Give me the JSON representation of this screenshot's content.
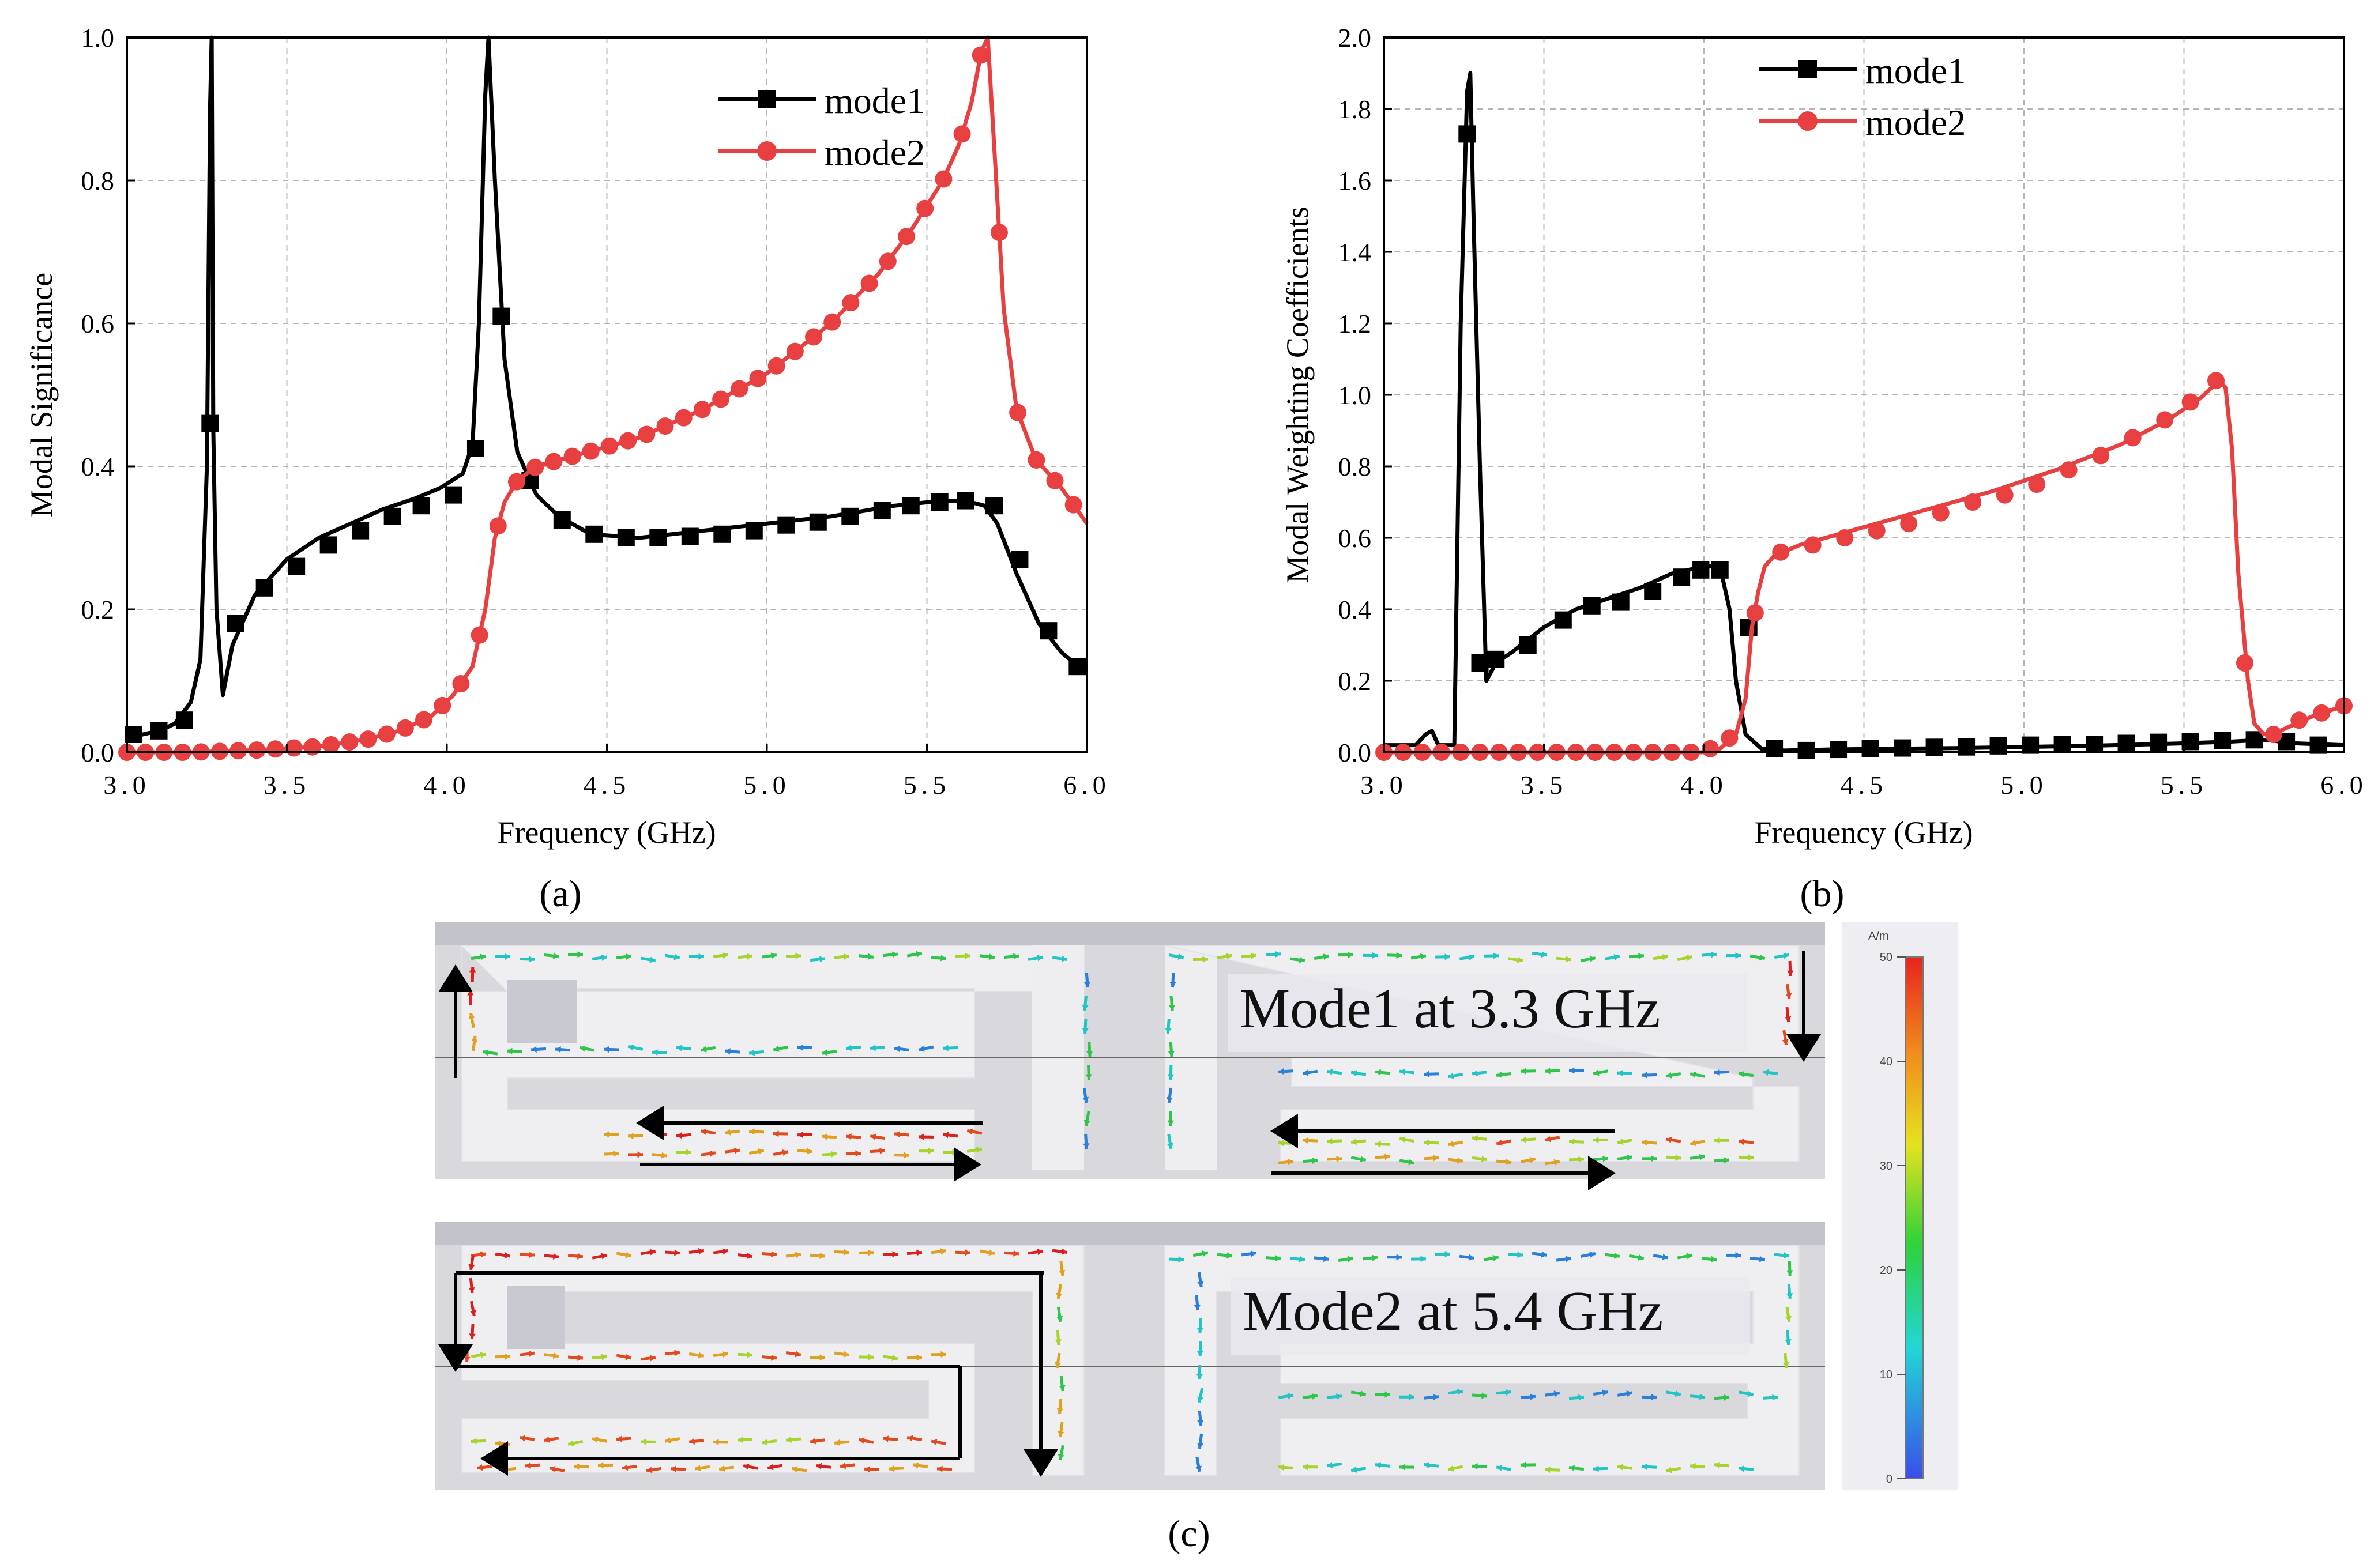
{
  "chart_data": [
    {
      "panel": "(a)",
      "type": "line",
      "title": "",
      "xlabel": "Frequency (GHz)",
      "ylabel": "Modal Significance",
      "xlim": [
        3.0,
        6.0
      ],
      "ylim": [
        0.0,
        1.0
      ],
      "xticks": [
        "3.0",
        "3.5",
        "4.0",
        "4.5",
        "5.0",
        "5.5",
        "6.0"
      ],
      "yticks": [
        "0.0",
        "0.2",
        "0.4",
        "0.6",
        "0.8",
        "1.0"
      ],
      "grid": true,
      "legend_position": "top-right",
      "series": [
        {
          "name": "mode1",
          "color": "#000000",
          "marker": "square",
          "x": [
            3.0,
            3.05,
            3.1,
            3.15,
            3.2,
            3.23,
            3.25,
            3.26,
            3.265,
            3.27,
            3.28,
            3.3,
            3.33,
            3.4,
            3.5,
            3.6,
            3.7,
            3.8,
            3.9,
            3.98,
            4.05,
            4.08,
            4.1,
            4.12,
            4.13,
            4.15,
            4.18,
            4.22,
            4.28,
            4.35,
            4.45,
            4.6,
            4.8,
            5.0,
            5.2,
            5.4,
            5.55,
            5.62,
            5.68,
            5.72,
            5.78,
            5.85,
            5.92,
            6.0
          ],
          "y": [
            0.02,
            0.025,
            0.03,
            0.04,
            0.07,
            0.13,
            0.4,
            0.9,
            1.0,
            0.45,
            0.2,
            0.08,
            0.15,
            0.22,
            0.27,
            0.3,
            0.32,
            0.34,
            0.355,
            0.37,
            0.39,
            0.43,
            0.6,
            0.92,
            1.0,
            0.8,
            0.55,
            0.42,
            0.36,
            0.33,
            0.305,
            0.3,
            0.31,
            0.32,
            0.33,
            0.345,
            0.352,
            0.352,
            0.345,
            0.32,
            0.25,
            0.18,
            0.14,
            0.11
          ],
          "marker_x": [
            3.02,
            3.1,
            3.18,
            3.26,
            3.34,
            3.43,
            3.53,
            3.63,
            3.73,
            3.83,
            3.92,
            4.02,
            4.09,
            4.17,
            4.26,
            4.36,
            4.46,
            4.56,
            4.66,
            4.76,
            4.86,
            4.96,
            5.06,
            5.16,
            5.26,
            5.36,
            5.45,
            5.54,
            5.62,
            5.71,
            5.79,
            5.88,
            5.97
          ],
          "marker_y": [
            0.025,
            0.03,
            0.045,
            0.46,
            0.18,
            0.23,
            0.26,
            0.29,
            0.31,
            0.33,
            0.345,
            0.36,
            0.425,
            0.61,
            0.38,
            0.325,
            0.305,
            0.3,
            0.3,
            0.302,
            0.305,
            0.31,
            0.318,
            0.322,
            0.33,
            0.338,
            0.345,
            0.35,
            0.352,
            0.345,
            0.27,
            0.17,
            0.12
          ]
        },
        {
          "name": "mode2",
          "color": "#e84040",
          "marker": "circle",
          "x": [
            3.0,
            3.2,
            3.4,
            3.6,
            3.75,
            3.85,
            3.95,
            4.02,
            4.08,
            4.12,
            4.15,
            4.18,
            4.22,
            4.28,
            4.4,
            4.6,
            4.8,
            5.0,
            5.2,
            5.35,
            5.45,
            5.55,
            5.6,
            5.64,
            5.67,
            5.69,
            5.71,
            5.74,
            5.78,
            5.84,
            5.92,
            6.0
          ],
          "y": [
            0.0,
            0.0,
            0.003,
            0.008,
            0.018,
            0.03,
            0.05,
            0.08,
            0.12,
            0.2,
            0.3,
            0.35,
            0.38,
            0.4,
            0.415,
            0.44,
            0.48,
            0.53,
            0.6,
            0.67,
            0.73,
            0.8,
            0.85,
            0.91,
            0.98,
            1.0,
            0.85,
            0.62,
            0.48,
            0.41,
            0.37,
            0.32
          ]
        }
      ]
    },
    {
      "panel": "(b)",
      "type": "line",
      "title": "",
      "xlabel": "Frequency (GHz)",
      "ylabel": "Modal Weighting Coefficients",
      "xlim": [
        3.0,
        6.0
      ],
      "ylim": [
        0.0,
        2.0
      ],
      "xticks": [
        "3.0",
        "3.5",
        "4.0",
        "4.5",
        "5.0",
        "5.5",
        "6.0"
      ],
      "yticks": [
        "0.0",
        "0.2",
        "0.4",
        "0.6",
        "0.8",
        "1.0",
        "1.2",
        "1.4",
        "1.6",
        "1.8",
        "2.0"
      ],
      "grid": true,
      "legend_position": "top-center",
      "series": [
        {
          "name": "mode1",
          "color": "#000000",
          "marker": "square",
          "x": [
            3.0,
            3.1,
            3.13,
            3.15,
            3.17,
            3.22,
            3.24,
            3.26,
            3.27,
            3.28,
            3.3,
            3.32,
            3.35,
            3.4,
            3.5,
            3.6,
            3.7,
            3.8,
            3.9,
            4.0,
            4.05,
            4.08,
            4.1,
            4.13,
            4.18,
            4.25,
            4.4,
            4.8,
            5.2,
            5.5,
            5.65,
            5.75,
            5.85,
            6.0
          ],
          "y": [
            0.02,
            0.02,
            0.05,
            0.06,
            0.02,
            0.02,
            1.2,
            1.85,
            1.9,
            1.5,
            0.8,
            0.2,
            0.25,
            0.28,
            0.35,
            0.4,
            0.43,
            0.46,
            0.5,
            0.52,
            0.52,
            0.4,
            0.2,
            0.05,
            0.01,
            0.005,
            0.008,
            0.012,
            0.018,
            0.025,
            0.03,
            0.035,
            0.025,
            0.02
          ],
          "marker_x": [
            3.26,
            3.3,
            3.35,
            3.45,
            3.56,
            3.65,
            3.74,
            3.84,
            3.93,
            3.99,
            4.05,
            4.14,
            4.22,
            4.32,
            4.42,
            4.52,
            4.62,
            4.72,
            4.82,
            4.92,
            5.02,
            5.12,
            5.22,
            5.32,
            5.42,
            5.52,
            5.62,
            5.72,
            5.82,
            5.92
          ],
          "marker_y": [
            1.73,
            0.25,
            0.26,
            0.3,
            0.37,
            0.41,
            0.42,
            0.45,
            0.49,
            0.51,
            0.51,
            0.35,
            0.01,
            0.005,
            0.008,
            0.01,
            0.012,
            0.014,
            0.015,
            0.018,
            0.02,
            0.022,
            0.022,
            0.025,
            0.028,
            0.03,
            0.033,
            0.035,
            0.03,
            0.02
          ]
        },
        {
          "name": "mode2",
          "color": "#e84040",
          "marker": "circle",
          "x": [
            3.0,
            3.5,
            4.0,
            4.05,
            4.1,
            4.13,
            4.15,
            4.17,
            4.19,
            4.22,
            4.3,
            4.5,
            4.7,
            4.9,
            5.1,
            5.3,
            5.45,
            5.55,
            5.61,
            5.63,
            5.65,
            5.67,
            5.7,
            5.72,
            5.75,
            5.8,
            5.9,
            6.0
          ],
          "y": [
            0.0,
            0.0,
            0.0,
            0.01,
            0.05,
            0.15,
            0.35,
            0.45,
            0.52,
            0.55,
            0.58,
            0.63,
            0.68,
            0.73,
            0.79,
            0.86,
            0.93,
            0.99,
            1.04,
            1.02,
            0.85,
            0.5,
            0.2,
            0.08,
            0.05,
            0.06,
            0.1,
            0.13
          ],
          "marker_x": [
            3.0,
            3.06,
            3.12,
            3.18,
            3.24,
            3.3,
            3.36,
            3.42,
            3.48,
            3.54,
            3.6,
            3.66,
            3.72,
            3.78,
            3.84,
            3.9,
            3.96,
            4.02,
            4.08,
            4.16,
            4.24,
            4.34,
            4.44,
            4.54,
            4.64,
            4.74,
            4.84,
            4.94,
            5.04,
            5.14,
            5.24,
            5.34,
            5.44,
            5.52,
            5.6,
            5.69,
            5.78,
            5.86,
            5.93,
            6.0
          ],
          "marker_y": [
            0.0,
            0.0,
            0.0,
            0.0,
            0.0,
            0.0,
            0.0,
            0.0,
            0.0,
            0.0,
            0.0,
            0.0,
            0.0,
            0.0,
            0.0,
            0.0,
            0.0,
            0.01,
            0.04,
            0.39,
            0.56,
            0.58,
            0.6,
            0.62,
            0.64,
            0.67,
            0.7,
            0.72,
            0.75,
            0.79,
            0.83,
            0.88,
            0.93,
            0.98,
            1.04,
            0.25,
            0.05,
            0.09,
            0.11,
            0.13
          ]
        }
      ]
    }
  ],
  "panel_labels": {
    "a": "(a)",
    "b": "(b)",
    "c": "(c)"
  },
  "field_plot": {
    "mode1_label": "Mode1 at 3.3 GHz",
    "mode2_label": "Mode2 at 5.4 GHz",
    "colorbar_unit": "A/m",
    "colorbar_ticks": [
      "50",
      "40",
      "30",
      "20",
      "10",
      "0"
    ],
    "colorbar_range": [
      0,
      50
    ]
  }
}
